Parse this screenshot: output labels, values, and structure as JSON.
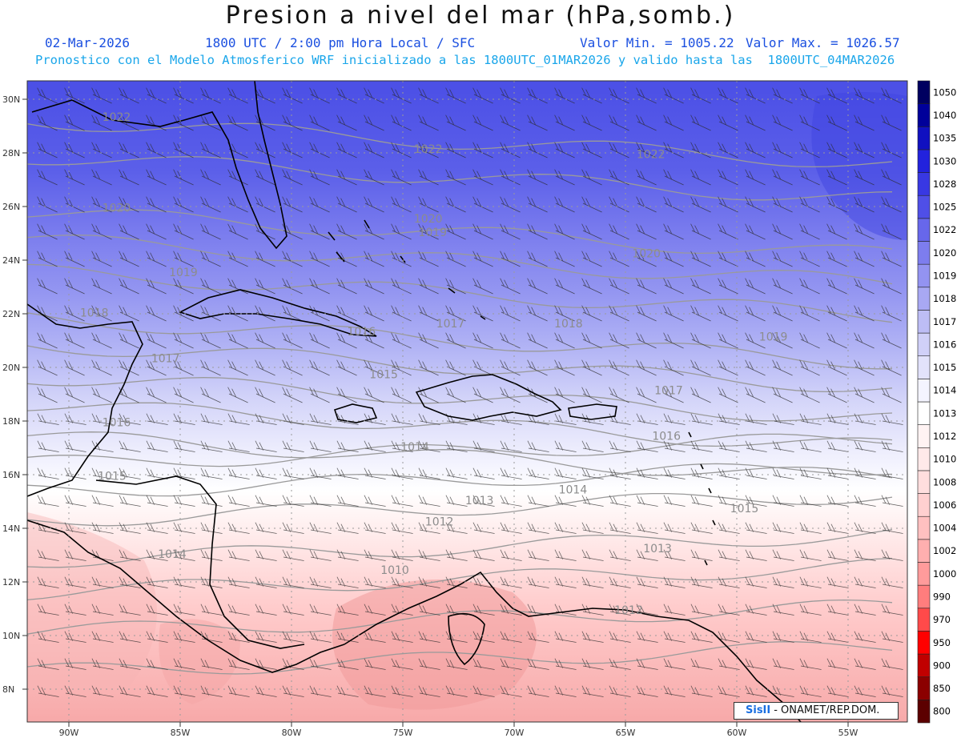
{
  "header": {
    "title": "Presion a nivel del mar (hPa,somb.)",
    "date": "02-Mar-2026",
    "time": "1800 UTC / 2:00 pm Hora Local / SFC",
    "min_label": "Valor Min. = 1005.22",
    "max_label": "Valor Max. = 1026.57",
    "forecast": "Pronostico con el Modelo Atmosferico WRF inicializado a las 1800UTC_01MAR2026 y valido hasta las  1800UTC_04MAR2026"
  },
  "map": {
    "lat_ticks": [
      "30N",
      "28N",
      "26N",
      "24N",
      "22N",
      "20N",
      "18N",
      "16N",
      "14N",
      "12N",
      "10N",
      "8N"
    ],
    "lon_ticks": [
      "90W",
      "85W",
      "80W",
      "75W",
      "70W",
      "65W",
      "60W",
      "55W"
    ],
    "contour_labels": [
      {
        "text": "1022",
        "lon": -88.5,
        "lat": 29.2
      },
      {
        "text": "1022",
        "lon": -74.5,
        "lat": 28.0
      },
      {
        "text": "1022",
        "lon": -64.5,
        "lat": 27.8
      },
      {
        "text": "1020",
        "lon": -88.5,
        "lat": 25.8
      },
      {
        "text": "1020",
        "lon": -74.5,
        "lat": 25.4
      },
      {
        "text": "1019",
        "lon": -74.3,
        "lat": 24.9
      },
      {
        "text": "1020",
        "lon": -64.7,
        "lat": 24.1
      },
      {
        "text": "1019",
        "lon": -85.5,
        "lat": 23.4
      },
      {
        "text": "1018",
        "lon": -89.5,
        "lat": 21.9
      },
      {
        "text": "1017",
        "lon": -73.5,
        "lat": 21.5
      },
      {
        "text": "1018",
        "lon": -68.2,
        "lat": 21.5
      },
      {
        "text": "1016",
        "lon": -77.5,
        "lat": 21.2
      },
      {
        "text": "1019",
        "lon": -59.0,
        "lat": 21.0
      },
      {
        "text": "1017",
        "lon": -86.3,
        "lat": 20.2
      },
      {
        "text": "1015",
        "lon": -76.5,
        "lat": 19.6
      },
      {
        "text": "1017",
        "lon": -63.7,
        "lat": 19.0
      },
      {
        "text": "1016",
        "lon": -88.5,
        "lat": 17.8
      },
      {
        "text": "1016",
        "lon": -63.8,
        "lat": 17.3
      },
      {
        "text": "1014",
        "lon": -75.1,
        "lat": 16.9
      },
      {
        "text": "1015",
        "lon": -88.7,
        "lat": 15.8
      },
      {
        "text": "1014",
        "lon": -68.0,
        "lat": 15.3
      },
      {
        "text": "1013",
        "lon": -72.2,
        "lat": 14.9
      },
      {
        "text": "1015",
        "lon": -60.3,
        "lat": 14.6
      },
      {
        "text": "1012",
        "lon": -74.0,
        "lat": 14.1
      },
      {
        "text": "1013",
        "lon": -64.2,
        "lat": 13.1
      },
      {
        "text": "1014",
        "lon": -86.0,
        "lat": 12.9
      },
      {
        "text": "1010",
        "lon": -76.0,
        "lat": 12.3
      },
      {
        "text": "1012",
        "lon": -65.5,
        "lat": 10.8
      }
    ]
  },
  "colorbar": {
    "levels": [
      "800",
      "850",
      "900",
      "950",
      "970",
      "990",
      "1000",
      "1002",
      "1004",
      "1006",
      "1008",
      "1010",
      "1012",
      "1013",
      "1014",
      "1015",
      "1016",
      "1017",
      "1018",
      "1019",
      "1020",
      "1022",
      "1025",
      "1028",
      "1030",
      "1035",
      "1040",
      "1050"
    ],
    "colors": [
      "#5c0000",
      "#8b0000",
      "#c00000",
      "#ff0000",
      "#ff4a4a",
      "#ff7d7d",
      "#ff9b9b",
      "#ffafaf",
      "#ffc0c0",
      "#ffd0d0",
      "#ffdede",
      "#ffe9e9",
      "#fff3f3",
      "#ffffff",
      "#f4f4ff",
      "#e2e2fb",
      "#d0d0f8",
      "#bdbdf5",
      "#a8a8f3",
      "#9393f1",
      "#7d7dee",
      "#6767eb",
      "#4f4fe7",
      "#3838e3",
      "#2222dd",
      "#1010c0",
      "#00009a",
      "#000060"
    ]
  },
  "credit": {
    "logo": "SisII",
    "text": "- ONAMET/REP.DOM."
  }
}
